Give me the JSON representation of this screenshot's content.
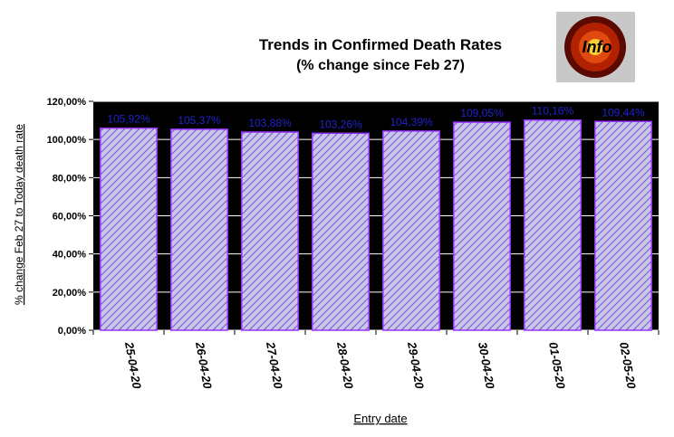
{
  "chart_data": {
    "type": "bar",
    "title": "Trends in Confirmed Death Rates",
    "subtitle": "(% change since Feb 27)",
    "xlabel": "Entry date",
    "ylabel": "% change Feb 27 to Today death rate",
    "categories": [
      "25-04-20",
      "26-04-20",
      "27-04-20",
      "28-04-20",
      "29-04-20",
      "30-04-20",
      "01-05-20",
      "02-05-20"
    ],
    "values": [
      105.92,
      105.37,
      103.88,
      103.26,
      104.39,
      109.05,
      110.16,
      109.44
    ],
    "data_labels": [
      "105,92%",
      "105,37%",
      "103,88%",
      "103,26%",
      "104,39%",
      "109,05%",
      "110,16%",
      "109,44%"
    ],
    "yticks": [
      "0,00%",
      "20,00%",
      "40,00%",
      "60,00%",
      "80,00%",
      "100,00%",
      "120,00%"
    ],
    "ylim": [
      0,
      120
    ],
    "grid": true,
    "colors": {
      "bar_fill": "#c8c8e6",
      "bar_stroke": "#9933ff",
      "hatch": "#7a4fd6",
      "label": "#2222cc"
    }
  },
  "info_button": {
    "label": "Info",
    "icon": "info-burst-icon"
  }
}
